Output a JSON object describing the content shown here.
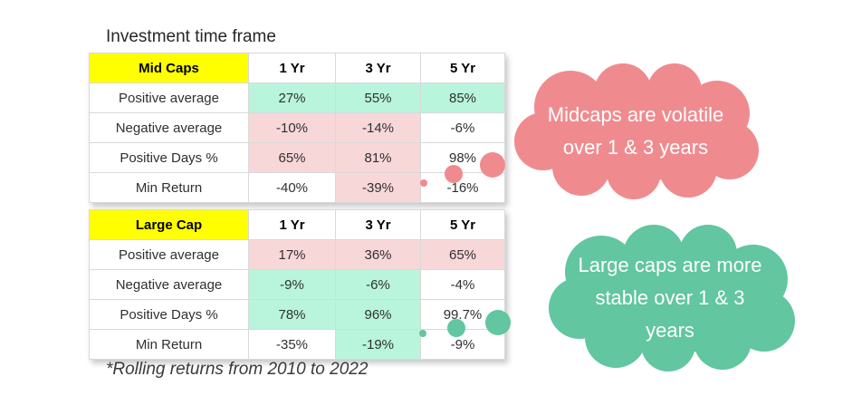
{
  "title": "Investment time frame",
  "mid_caps": {
    "header": [
      "Mid Caps",
      "1 Yr",
      "3 Yr",
      "5 Yr"
    ],
    "rows": [
      {
        "label": "Positive average",
        "values": [
          "27%",
          "55%",
          "85%"
        ],
        "shades": [
          "green",
          "green",
          "green"
        ]
      },
      {
        "label": "Negative average",
        "values": [
          "-10%",
          "-14%",
          "-6%"
        ],
        "shades": [
          "pink",
          "pink",
          "none"
        ]
      },
      {
        "label": "Positive Days %",
        "values": [
          "65%",
          "81%",
          "98%"
        ],
        "shades": [
          "pink",
          "pink",
          "none"
        ]
      },
      {
        "label": "Min Return",
        "values": [
          "-40%",
          "-39%",
          "-16%"
        ],
        "shades": [
          "none",
          "pink",
          "none"
        ]
      }
    ]
  },
  "large_cap": {
    "header": [
      "Large Cap",
      "1 Yr",
      "3 Yr",
      "5 Yr"
    ],
    "rows": [
      {
        "label": "Positive average",
        "values": [
          "17%",
          "36%",
          "65%"
        ],
        "shades": [
          "pink",
          "pink",
          "pink"
        ]
      },
      {
        "label": "Negative average",
        "values": [
          "-9%",
          "-6%",
          "-4%"
        ],
        "shades": [
          "green",
          "green",
          "none"
        ]
      },
      {
        "label": "Positive Days %",
        "values": [
          "78%",
          "96%",
          "99.7%"
        ],
        "shades": [
          "green",
          "green",
          "none"
        ]
      },
      {
        "label": "Min Return",
        "values": [
          "-35%",
          "-19%",
          "-9%"
        ],
        "shades": [
          "none",
          "green",
          "none"
        ]
      }
    ]
  },
  "footnote": "*Rolling returns from 2010 to 2022",
  "callouts": {
    "midcaps": {
      "text": "Midcaps are volatile over 1 & 3 years",
      "color": "#ef8b8f"
    },
    "largecaps": {
      "text": "Large caps are more stable over 1 & 3 years",
      "color": "#62c6a0"
    }
  },
  "colors": {
    "header_yellow": "#ffff00",
    "green_cell": "#b8f5dc",
    "pink_cell": "#f8d7d9"
  }
}
